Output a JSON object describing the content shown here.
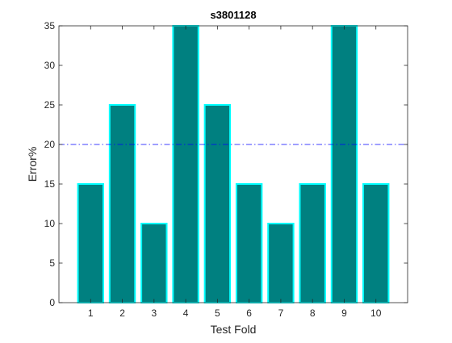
{
  "chart_data": {
    "type": "bar",
    "title": "s3801128",
    "xlabel": "Test Fold",
    "ylabel": "Error%",
    "categories": [
      "1",
      "2",
      "3",
      "4",
      "5",
      "6",
      "7",
      "8",
      "9",
      "10"
    ],
    "values": [
      15,
      25,
      10,
      35,
      25,
      15,
      10,
      15,
      35,
      15
    ],
    "ylim": [
      0,
      35
    ],
    "xlim": [
      0,
      11
    ],
    "yticks": [
      0,
      5,
      10,
      15,
      20,
      25,
      30,
      35
    ],
    "reference_line": {
      "y": 20,
      "style": "dash-dot"
    },
    "grid": false,
    "legend": null,
    "colors": {
      "bar_fill": "#008080",
      "bar_edge": "#00ffff",
      "reference_line": "#0000ff",
      "axis": "#262626",
      "text": "#262626"
    }
  }
}
